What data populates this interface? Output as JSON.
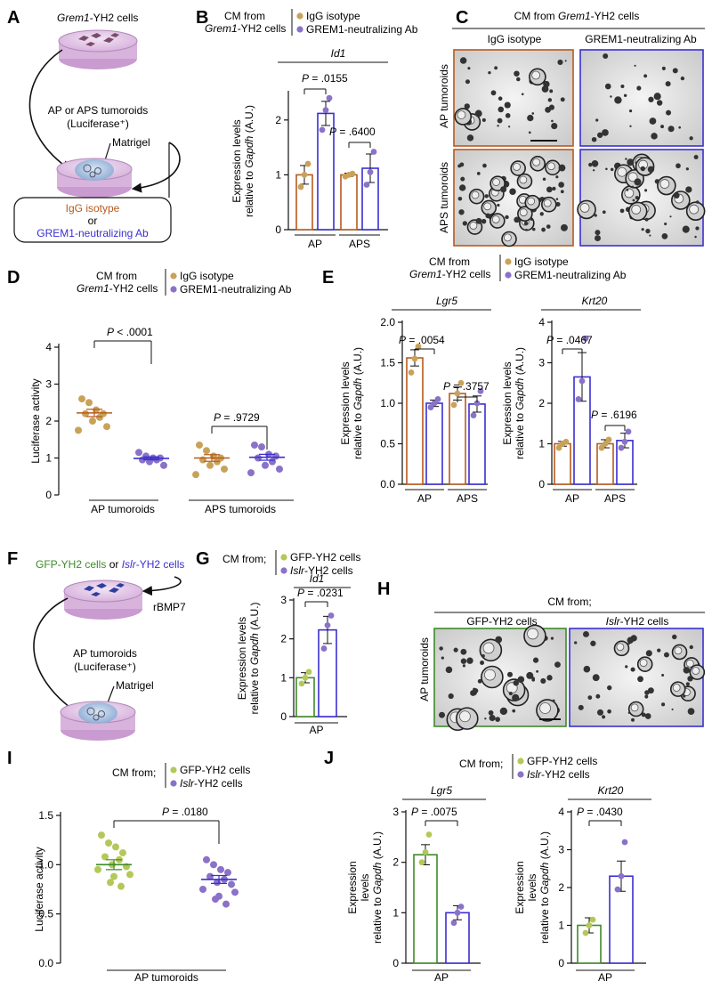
{
  "colors": {
    "igg": "#b85a1e",
    "igg_dot": "#c9a25a",
    "grem": "#3a2fd0",
    "grem_dot": "#8a72c8",
    "gfp": "#3f8a2a",
    "gfp_dot": "#b4c85a",
    "islr": "#3a2fd0",
    "islr_dot": "#8a72c8",
    "dish": "#d9b7dd",
    "matrigel": "#9ab4d9"
  },
  "panels": {
    "A": {
      "letter": "A",
      "cell_label_italic": "Grem1",
      "cell_label_rest": "-YH2 cells",
      "tumoroid_line1": "AP or APS  tumoroids",
      "tumoroid_line2": "(Luciferase⁺)",
      "matrigel": "Matrigel",
      "box_line1": "IgG isotype",
      "box_or": "or",
      "box_line2": "GREM1-neutralizing Ab"
    },
    "B": {
      "letter": "B",
      "legend_cm1": "CM from",
      "legend_cm2_italic": "Grem1",
      "legend_cm2_rest": "-YH2 cells",
      "legend_items": [
        "IgG isotype",
        "GREM1-neutralizing Ab"
      ]
    },
    "C": {
      "letter": "C",
      "header_pre": "CM from ",
      "header_italic": "Grem1",
      "header_post": "-YH2 cells",
      "col_labels": [
        "IgG isotype",
        "GREM1-neutralizing Ab"
      ],
      "row_labels": [
        "AP tumoroids",
        "APS tumoroids"
      ]
    },
    "D": {
      "letter": "D",
      "legend_cm1": "CM from",
      "legend_cm2_italic": "Grem1",
      "legend_cm2_rest": "-YH2 cells",
      "legend_items": [
        "IgG isotype",
        "GREM1-neutralizing Ab"
      ]
    },
    "E": {
      "letter": "E",
      "legend_cm1": "CM from",
      "legend_cm2_italic": "Grem1",
      "legend_cm2_rest": "-YH2 cells",
      "legend_items": [
        "IgG isotype",
        "GREM1-neutralizing Ab"
      ]
    },
    "F": {
      "letter": "F",
      "cell_label_green": "GFP-YH2 cells",
      "cell_label_or": " or ",
      "cell_label_italic": "Islr",
      "cell_label_rest": "-YH2 cells",
      "rbmp7": "rBMP7",
      "tumoroid_line1": "AP  tumoroids",
      "tumoroid_line2": "(Luciferase⁺)",
      "matrigel": "Matrigel"
    },
    "G": {
      "letter": "G",
      "legend_cm": "CM from;",
      "legend_items": [
        "GFP-YH2 cells",
        "-YH2 cells"
      ],
      "legend_item2_italic": "Islr"
    },
    "H": {
      "letter": "H",
      "header": "CM from;",
      "col_labels": [
        "GFP-YH2 cells",
        "-YH2 cells"
      ],
      "col2_italic": "Islr",
      "row_label": "AP tumoroids"
    },
    "I": {
      "letter": "I",
      "legend_cm": "CM from;",
      "legend_items": [
        "GFP-YH2 cells",
        "-YH2 cells"
      ],
      "legend_item2_italic": "Islr"
    },
    "J": {
      "letter": "J",
      "legend_cm": "CM from;",
      "legend_items": [
        "GFP-YH2 cells",
        "-YH2 cells"
      ],
      "legend_item2_italic": "Islr"
    }
  },
  "chart_data": [
    {
      "id": "B",
      "type": "bar",
      "title": "Id1",
      "ylabel_line1": "Expression levels",
      "ylabel_line2_pre": "relative to ",
      "ylabel_line2_italic": "Gapdh",
      "ylabel_line2_post": " (A.U.)",
      "ylim": [
        0,
        2.5
      ],
      "yticks": [
        "0",
        "1",
        "2"
      ],
      "groups": [
        "AP",
        "APS"
      ],
      "series": [
        {
          "name": "IgG isotype",
          "values": [
            1.0,
            1.0
          ],
          "errors": [
            0.17,
            0.03
          ],
          "points": [
            [
              0.78,
              1.0,
              1.2
            ],
            [
              0.97,
              1.0,
              1.02
            ]
          ]
        },
        {
          "name": "GREM1-neutralizing Ab",
          "values": [
            2.12,
            1.12
          ],
          "errors": [
            0.22,
            0.26
          ],
          "points": [
            [
              1.82,
              2.18,
              2.4
            ],
            [
              0.82,
              1.05,
              1.42
            ]
          ]
        }
      ],
      "pvalues": [
        "P = .0155",
        "P = .6400"
      ]
    },
    {
      "id": "D",
      "type": "scatter",
      "ylabel": "Luciferase activity",
      "ylim": [
        0,
        4
      ],
      "yticks": [
        "0",
        "1",
        "2",
        "3",
        "4"
      ],
      "groups": [
        "AP tumoroids",
        "APS tumoroids"
      ],
      "series": [
        {
          "name": "IgG isotype",
          "points": [
            [
              2.6,
              2.5,
              2.3,
              2.2,
              2.2,
              2.1,
              2.0,
              1.85,
              1.75
            ],
            [
              1.35,
              1.2,
              1.05,
              1.0,
              0.95,
              0.9,
              0.8,
              0.7,
              0.55
            ]
          ],
          "means": [
            2.22,
            1.0
          ],
          "sems": [
            0.1,
            0.09
          ]
        },
        {
          "name": "GREM1-neutralizing Ab",
          "points": [
            [
              1.15,
              1.05,
              1.0,
              1.0,
              0.95,
              0.95,
              0.9,
              0.8
            ],
            [
              1.35,
              1.3,
              1.1,
              1.05,
              1.0,
              0.9,
              0.8,
              0.7,
              0.6
            ]
          ],
          "means": [
            0.99,
            1.02
          ],
          "sems": [
            0.04,
            0.08
          ]
        }
      ],
      "pvalues": [
        "P < .0001",
        "P = .9729"
      ]
    },
    {
      "id": "E1",
      "type": "bar",
      "title": "Lgr5",
      "ylabel_line1": "Expression levels",
      "ylabel_line2_pre": "relative to ",
      "ylabel_line2_italic": "Gapdh",
      "ylabel_line2_post": " (A.U.)",
      "ylim": [
        0,
        2.0
      ],
      "yticks": [
        "0.0",
        "0.5",
        "1.0",
        "1.5",
        "2.0"
      ],
      "groups": [
        "AP",
        "APS"
      ],
      "series": [
        {
          "name": "IgG isotype",
          "values": [
            1.56,
            1.12
          ],
          "errors": [
            0.1,
            0.08
          ],
          "points": [
            [
              1.38,
              1.55,
              1.7
            ],
            [
              0.98,
              1.12,
              1.25
            ]
          ]
        },
        {
          "name": "GREM1-neutralizing Ab",
          "values": [
            1.0,
            0.99
          ],
          "errors": [
            0.04,
            0.1
          ],
          "points": [
            [
              0.95,
              1.0,
              1.05
            ],
            [
              0.85,
              1.0,
              1.15
            ]
          ]
        }
      ],
      "pvalues": [
        "P = .0054",
        "P = .3757"
      ]
    },
    {
      "id": "E2",
      "type": "bar",
      "title": "Krt20",
      "ylabel_line1": "Expression levels",
      "ylabel_line2_pre": "relative to ",
      "ylabel_line2_italic": "Gapdh",
      "ylabel_line2_post": " (A.U.)",
      "ylim": [
        0,
        4
      ],
      "yticks": [
        "0",
        "1",
        "2",
        "3",
        "4"
      ],
      "groups": [
        "AP",
        "APS"
      ],
      "series": [
        {
          "name": "IgG isotype",
          "values": [
            1.0,
            1.0
          ],
          "errors": [
            0.06,
            0.1
          ],
          "points": [
            [
              0.9,
              1.0,
              1.05
            ],
            [
              0.9,
              1.0,
              1.1
            ]
          ]
        },
        {
          "name": "GREM1-neutralizing Ab",
          "values": [
            2.65,
            1.08
          ],
          "errors": [
            0.6,
            0.18
          ],
          "points": [
            [
              2.1,
              2.55,
              3.6
            ],
            [
              0.9,
              1.05,
              1.3
            ]
          ]
        }
      ],
      "pvalues": [
        "P = .0467",
        "P = .6196"
      ]
    },
    {
      "id": "G",
      "type": "bar",
      "title": "Id1",
      "ylabel_line1": "Expression levels",
      "ylabel_line2_pre": "relative to ",
      "ylabel_line2_italic": "Gapdh",
      "ylabel_line2_post": " (A.U.)",
      "ylim": [
        0,
        3
      ],
      "yticks": [
        "0",
        "1",
        "2",
        "3"
      ],
      "groups": [
        "AP"
      ],
      "series": [
        {
          "name": "GFP-YH2 cells",
          "values": [
            1.0
          ],
          "errors": [
            0.13
          ],
          "points": [
            [
              0.85,
              1.0,
              1.15
            ]
          ]
        },
        {
          "name": "Islr-YH2 cells",
          "values": [
            2.23
          ],
          "errors": [
            0.35
          ],
          "points": [
            [
              1.75,
              2.35,
              2.6
            ]
          ]
        }
      ],
      "pvalues": [
        "P = .0231"
      ]
    },
    {
      "id": "I",
      "type": "scatter",
      "ylabel": "Luciferase activity",
      "ylim": [
        0,
        1.5
      ],
      "yticks": [
        "0.0",
        "0.5",
        "1.0",
        "1.5"
      ],
      "groups": [
        "AP tumoroids"
      ],
      "series": [
        {
          "name": "GFP-YH2 cells",
          "points": [
            [
              1.3,
              1.22,
              1.18,
              1.12,
              1.08,
              1.05,
              1.0,
              0.98,
              0.95,
              0.9,
              0.88,
              0.82,
              0.78
            ]
          ],
          "means": [
            1.0
          ],
          "sems": [
            0.05
          ]
        },
        {
          "name": "Islr-YH2 cells",
          "points": [
            [
              1.05,
              1.0,
              0.95,
              0.92,
              0.88,
              0.85,
              0.82,
              0.8,
              0.75,
              0.72,
              0.68,
              0.65,
              0.6
            ]
          ],
          "means": [
            0.85
          ],
          "sems": [
            0.04
          ]
        }
      ],
      "pvalues": [
        "P = .0180"
      ]
    },
    {
      "id": "J1",
      "type": "bar",
      "title": "Lgr5",
      "ylabel_line1": "Expression",
      "ylabel_line2_pre": "levels",
      "ylabel_line3_pre": "relative to ",
      "ylabel_line3_italic": "Gapdh",
      "ylabel_line3_post": " (A.U.)",
      "ylim": [
        0,
        3
      ],
      "yticks": [
        "0",
        "1",
        "2",
        "3"
      ],
      "groups": [
        "AP"
      ],
      "series": [
        {
          "name": "GFP-YH2 cells",
          "values": [
            2.15
          ],
          "errors": [
            0.2
          ],
          "points": [
            [
              2.0,
              2.2,
              2.55
            ]
          ]
        },
        {
          "name": "Islr-YH2 cells",
          "values": [
            1.0
          ],
          "errors": [
            0.14
          ],
          "points": [
            [
              0.8,
              1.0,
              1.12
            ]
          ]
        }
      ],
      "pvalues": [
        "P = .0075"
      ]
    },
    {
      "id": "J2",
      "type": "bar",
      "title": "Krt20",
      "ylabel_line1": "Expression",
      "ylabel_line2_pre": "levels",
      "ylabel_line3_pre": "relative to ",
      "ylabel_line3_italic": "Gapdh",
      "ylabel_line3_post": " (A.U.)",
      "ylim": [
        0,
        4
      ],
      "yticks": [
        "0",
        "1",
        "2",
        "3",
        "4"
      ],
      "groups": [
        "AP"
      ],
      "series": [
        {
          "name": "GFP-YH2 cells",
          "values": [
            1.0
          ],
          "errors": [
            0.2
          ],
          "points": [
            [
              0.8,
              1.0,
              1.15
            ]
          ]
        },
        {
          "name": "Islr-YH2 cells",
          "values": [
            2.3
          ],
          "errors": [
            0.4
          ],
          "points": [
            [
              1.95,
              2.3,
              3.2
            ]
          ]
        }
      ],
      "pvalues": [
        "P = .0430"
      ]
    }
  ]
}
